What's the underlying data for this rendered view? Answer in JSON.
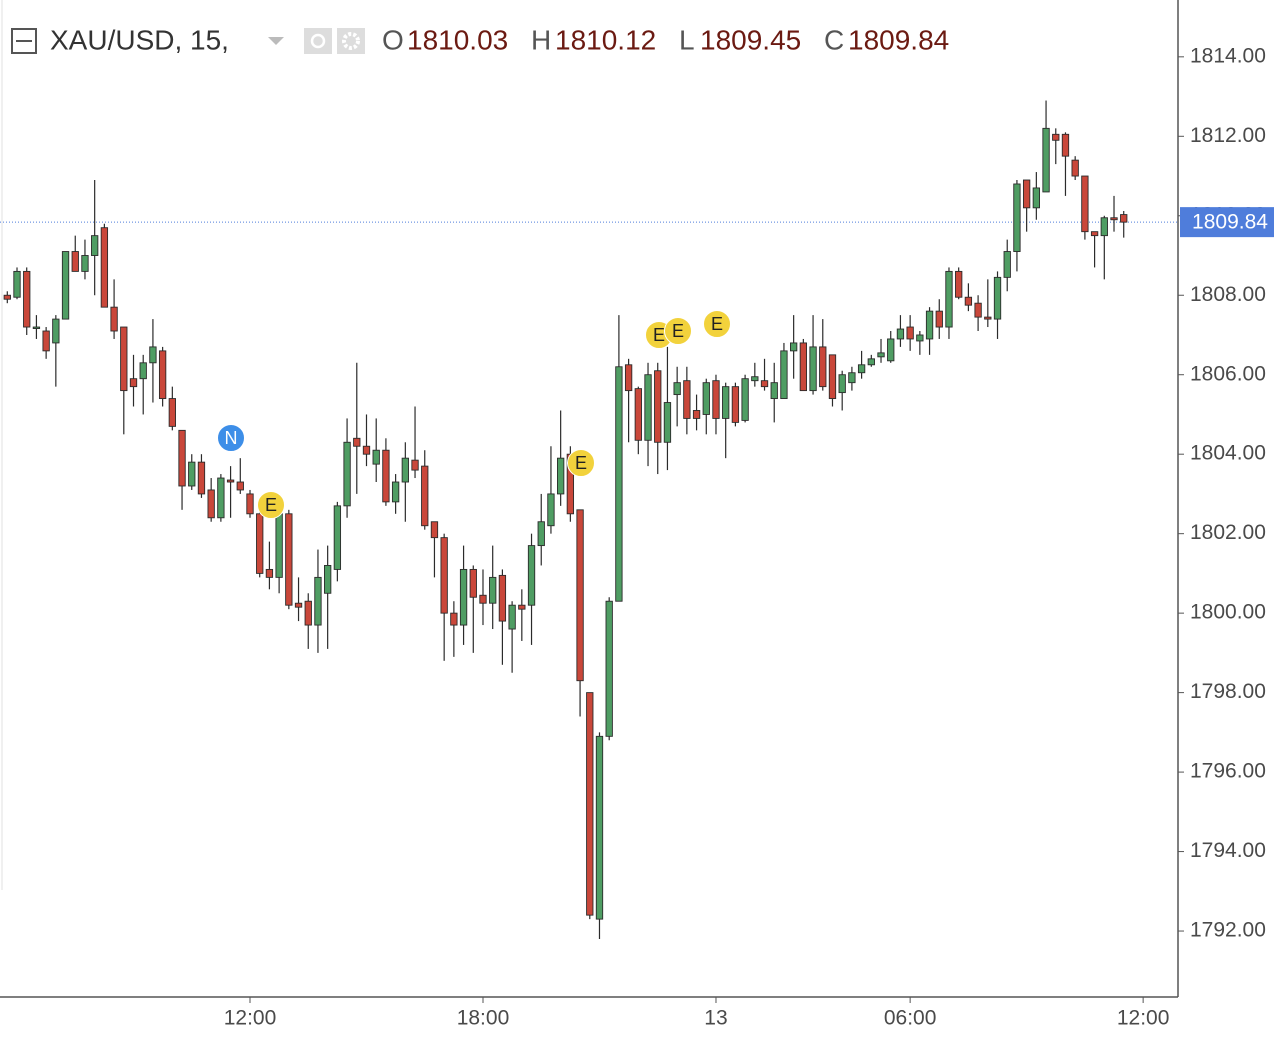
{
  "chart_data": {
    "type": "candlestick",
    "header": {
      "symbol": "XAU/USD, 15,",
      "open_label": "O",
      "open": "1810.03",
      "high_label": "H",
      "high": "1810.12",
      "low_label": "L",
      "low": "1809.45",
      "close_label": "C",
      "close": "1809.84"
    },
    "categories": [
      null,
      null,
      null,
      null,
      null,
      null,
      null,
      null,
      null,
      null,
      null,
      null,
      null,
      null,
      null,
      null,
      null,
      null,
      null,
      null,
      null,
      null,
      null,
      null,
      null,
      "12:00",
      null,
      null,
      null,
      null,
      null,
      null,
      null,
      null,
      null,
      null,
      null,
      null,
      null,
      null,
      null,
      null,
      null,
      null,
      null,
      null,
      null,
      null,
      null,
      "18:00",
      null,
      null,
      null,
      null,
      null,
      null,
      null,
      null,
      null,
      null,
      null,
      null,
      null,
      null,
      null,
      null,
      null,
      null,
      null,
      null,
      null,
      null,
      null,
      "13",
      null,
      null,
      null,
      null,
      null,
      null,
      null,
      null,
      null,
      null,
      null,
      null,
      null,
      null,
      null,
      null,
      null,
      null,
      null,
      "06:00",
      null,
      null,
      null,
      null,
      null,
      null,
      null,
      null,
      null,
      null,
      null,
      null,
      null,
      null,
      null,
      null,
      null,
      null,
      null,
      null,
      null,
      null,
      null,
      "12:00"
    ],
    "open": [
      1808.0,
      1807.95,
      1808.6,
      1807.2,
      1807.1,
      1806.8,
      1807.4,
      1809.1,
      1808.6,
      1809.0,
      1809.7,
      1807.7,
      1807.2,
      1805.9,
      1805.9,
      1806.3,
      1806.6,
      1805.4,
      1804.6,
      1803.2,
      1803.8,
      1803.1,
      1802.4,
      1803.35,
      1803.3,
      1803.0,
      1802.5,
      1801.1,
      1800.9,
      1802.5,
      1800.25,
      1800.3,
      1799.7,
      1800.5,
      1801.1,
      1802.7,
      1804.4,
      1804.2,
      1803.75,
      1804.1,
      1802.8,
      1803.3,
      1803.85,
      1803.7,
      1802.3,
      1801.9,
      1800.0,
      1799.7,
      1801.1,
      1800.45,
      1800.25,
      1800.95,
      1799.6,
      1800.2,
      1800.2,
      1801.7,
      1802.2,
      1803.0,
      1804.0,
      1802.6,
      1798.0,
      1792.3,
      1796.9,
      1800.3,
      1806.25,
      1805.65,
      1804.35,
      1806.1,
      1804.3,
      1805.5,
      1805.85,
      1805.1,
      1805.0,
      1805.85,
      1804.9,
      1805.7,
      1804.85,
      1805.85,
      1805.85,
      1805.4,
      1805.4,
      1806.6,
      1806.8,
      1805.6,
      1806.7,
      1806.5,
      1805.55,
      1805.8,
      1806.05,
      1806.25,
      1806.45,
      1806.35,
      1806.9,
      1807.2,
      1806.85,
      1806.9,
      1807.6,
      1807.2,
      1808.6,
      1807.95,
      1807.8,
      1807.45,
      1807.4,
      1808.45,
      1809.1,
      1810.9,
      1810.2,
      1810.6,
      1812.05,
      1812.05,
      1811.4,
      1811.0,
      1809.6,
      1809.5,
      1809.95,
      1810.03,
      null,
      null
    ],
    "high": [
      1808.1,
      1808.7,
      1808.7,
      1807.5,
      1807.2,
      1807.5,
      1809.1,
      1809.5,
      1809.4,
      1810.9,
      1809.8,
      1808.4,
      1807.2,
      1806.5,
      1806.5,
      1807.4,
      1806.7,
      1805.7,
      1804.6,
      1804.0,
      1804.0,
      1803.4,
      1803.5,
      1803.7,
      1803.9,
      1803.1,
      1802.6,
      1801.8,
      1802.6,
      1802.6,
      1800.9,
      1800.5,
      1801.6,
      1801.7,
      1802.8,
      1804.9,
      1806.3,
      1805.0,
      1804.9,
      1804.4,
      1803.5,
      1804.3,
      1805.2,
      1804.1,
      1802.3,
      1802.0,
      1800.3,
      1801.7,
      1801.2,
      1801.1,
      1801.7,
      1801.1,
      1800.3,
      1800.6,
      1802.0,
      1803.0,
      1804.2,
      1805.1,
      1804.2,
      1802.6,
      1798.0,
      1797.0,
      1800.4,
      1807.5,
      1806.4,
      1805.7,
      1806.3,
      1806.3,
      1806.7,
      1806.2,
      1806.2,
      1805.5,
      1805.9,
      1806.0,
      1805.8,
      1805.8,
      1806.0,
      1806.3,
      1806.4,
      1806.3,
      1806.8,
      1807.5,
      1806.9,
      1807.5,
      1807.4,
      1806.5,
      1806.1,
      1806.2,
      1806.6,
      1806.5,
      1806.9,
      1807.1,
      1807.5,
      1807.5,
      1807.1,
      1807.7,
      1807.9,
      1808.7,
      1808.7,
      1808.3,
      1808.0,
      1808.4,
      1808.6,
      1809.4,
      1810.9,
      1810.9,
      1811.1,
      1812.9,
      1812.2,
      1812.1,
      1811.5,
      1811.0,
      1809.6,
      1810.0,
      1810.5,
      1810.12,
      null,
      null
    ],
    "low": [
      1807.8,
      1807.9,
      1807.0,
      1806.9,
      1806.4,
      1805.7,
      1807.4,
      1808.6,
      1808.4,
      1808.0,
      1807.7,
      1806.9,
      1804.5,
      1805.2,
      1805.0,
      1805.3,
      1805.2,
      1804.6,
      1802.6,
      1803.1,
      1802.9,
      1802.3,
      1802.3,
      1802.4,
      1803.0,
      1802.4,
      1800.9,
      1800.6,
      1800.5,
      1800.1,
      1799.8,
      1799.1,
      1799.0,
      1799.1,
      1800.8,
      1802.4,
      1803.0,
      1803.7,
      1803.3,
      1802.7,
      1802.5,
      1802.3,
      1803.4,
      1802.1,
      1800.9,
      1798.8,
      1798.9,
      1799.2,
      1799.0,
      1799.7,
      1799.6,
      1798.7,
      1798.5,
      1799.3,
      1799.2,
      1801.2,
      1802.0,
      1802.7,
      1802.3,
      1797.4,
      1792.3,
      1791.8,
      1796.8,
      1800.3,
      1804.3,
      1804.0,
      1803.7,
      1803.5,
      1803.6,
      1804.7,
      1804.5,
      1804.6,
      1804.5,
      1804.5,
      1803.9,
      1804.7,
      1804.8,
      1805.7,
      1805.6,
      1804.8,
      1805.4,
      1805.9,
      1805.6,
      1805.5,
      1805.6,
      1805.2,
      1805.1,
      1805.6,
      1805.9,
      1806.2,
      1806.3,
      1806.3,
      1806.7,
      1806.6,
      1806.5,
      1806.5,
      1806.9,
      1806.9,
      1807.9,
      1807.6,
      1807.1,
      1807.2,
      1806.9,
      1808.1,
      1808.6,
      1809.6,
      1809.9,
      1810.6,
      1811.3,
      1810.5,
      1810.9,
      1809.4,
      1808.7,
      1808.4,
      1809.6,
      1809.45,
      null,
      null
    ],
    "close": [
      1807.9,
      1808.6,
      1807.2,
      1807.2,
      1806.6,
      1807.4,
      1809.1,
      1808.6,
      1809.0,
      1809.5,
      1807.7,
      1807.1,
      1805.6,
      1805.7,
      1806.3,
      1806.7,
      1805.4,
      1804.7,
      1803.2,
      1803.8,
      1803.0,
      1802.4,
      1803.4,
      1803.3,
      1803.1,
      1802.5,
      1801.0,
      1800.9,
      1802.5,
      1800.2,
      1800.15,
      1799.7,
      1800.9,
      1801.2,
      1802.7,
      1804.3,
      1804.2,
      1804.0,
      1804.1,
      1802.8,
      1803.3,
      1803.9,
      1803.6,
      1802.2,
      1801.9,
      1800.0,
      1799.7,
      1801.1,
      1800.4,
      1800.25,
      1800.9,
      1799.8,
      1800.2,
      1800.1,
      1801.7,
      1802.3,
      1803.0,
      1803.9,
      1802.5,
      1798.3,
      1792.4,
      1796.9,
      1800.3,
      1806.2,
      1805.6,
      1804.35,
      1806.0,
      1804.3,
      1805.3,
      1805.8,
      1804.9,
      1804.9,
      1805.8,
      1804.9,
      1805.7,
      1804.8,
      1805.9,
      1805.95,
      1805.7,
      1805.8,
      1806.6,
      1806.8,
      1805.6,
      1806.7,
      1805.7,
      1805.4,
      1806.0,
      1806.05,
      1806.25,
      1806.4,
      1806.55,
      1806.9,
      1807.15,
      1806.9,
      1807.0,
      1807.6,
      1807.2,
      1808.6,
      1807.95,
      1807.75,
      1807.45,
      1807.4,
      1808.45,
      1809.1,
      1810.8,
      1810.2,
      1810.7,
      1812.2,
      1811.9,
      1811.5,
      1811.0,
      1809.6,
      1809.5,
      1809.95,
      1809.9,
      1809.84,
      null,
      null
    ],
    "up_color": "#4f9d63",
    "down_color": "#c9473a",
    "last_price": 1809.84,
    "last_price_color": "#4f7ddb",
    "events": [
      "N",
      "E",
      "E",
      "E",
      "E",
      "E"
    ],
    "ylim": [
      1790.34,
      1815.43
    ],
    "yticks": [
      {
        "value": 1792,
        "label": "1792.00"
      },
      {
        "value": 1794,
        "label": "1794.00"
      },
      {
        "value": 1796,
        "label": "1796.00"
      },
      {
        "value": 1798,
        "label": "1798.00"
      },
      {
        "value": 1800,
        "label": "1800.00"
      },
      {
        "value": 1802,
        "label": "1802.00"
      },
      {
        "value": 1804,
        "label": "1804.00"
      },
      {
        "value": 1806,
        "label": "1806.00"
      },
      {
        "value": 1808,
        "label": "1808.00"
      },
      {
        "value": 1810,
        "label": "1810.00"
      },
      {
        "value": 1812,
        "label": "1812.00"
      },
      {
        "value": 1814,
        "label": "1814.00"
      }
    ],
    "grid": false
  }
}
